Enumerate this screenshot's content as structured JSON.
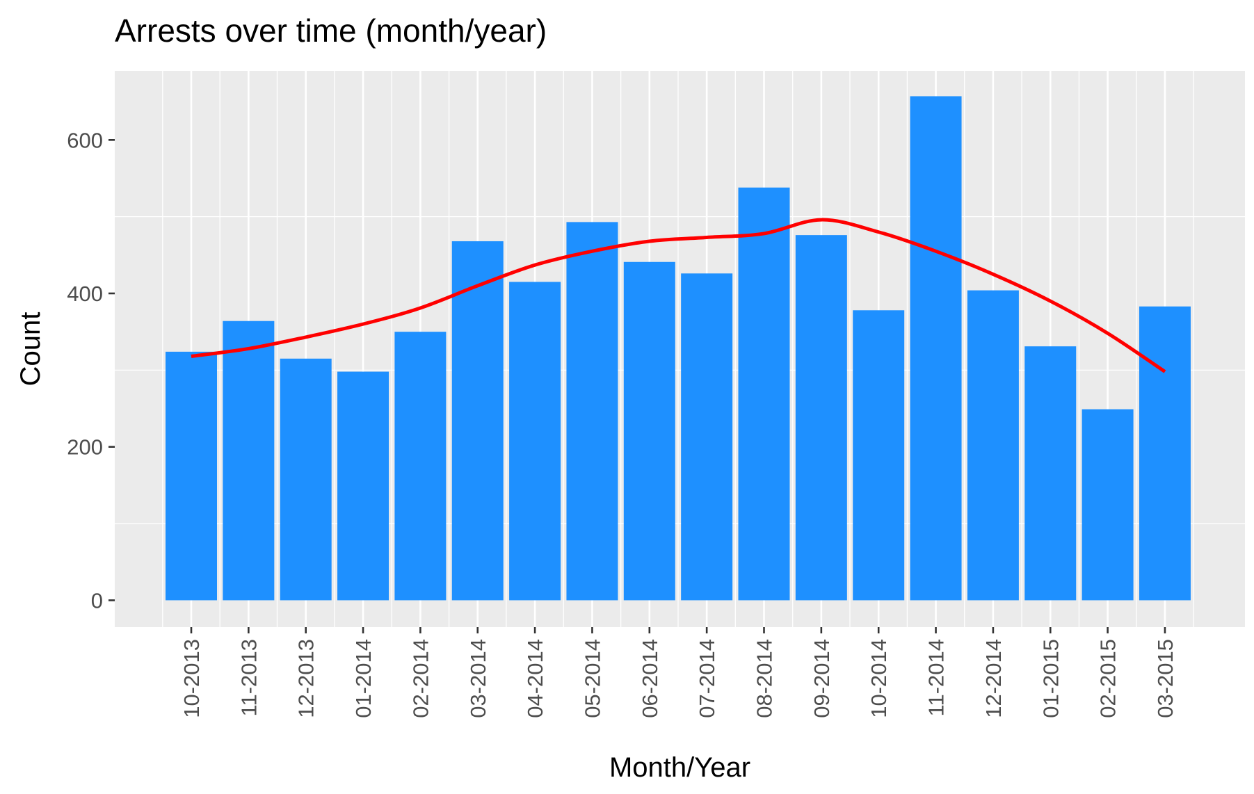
{
  "chart_data": {
    "type": "bar",
    "title": "Arrests over time (month/year)",
    "xlabel": "Month/Year",
    "ylabel": "Count",
    "categories": [
      "10-2013",
      "11-2013",
      "12-2013",
      "01-2014",
      "02-2014",
      "03-2014",
      "04-2014",
      "05-2014",
      "06-2014",
      "07-2014",
      "08-2014",
      "09-2014",
      "10-2014",
      "11-2014",
      "12-2014",
      "01-2015",
      "02-2015",
      "03-2015"
    ],
    "values": [
      324,
      364,
      315,
      298,
      350,
      468,
      415,
      493,
      441,
      426,
      538,
      476,
      378,
      657,
      404,
      331,
      249,
      383
    ],
    "series": [
      {
        "type": "bar",
        "values": [
          324,
          364,
          315,
          298,
          350,
          468,
          415,
          493,
          441,
          426,
          538,
          476,
          378,
          657,
          404,
          331,
          249,
          383
        ]
      },
      {
        "type": "line",
        "values": [
          318,
          328,
          343,
          360,
          381,
          410,
          437,
          455,
          468,
          473,
          478,
          496,
          480,
          455,
          425,
          390,
          348,
          298
        ]
      }
    ],
    "yticks": [
      0,
      200,
      400,
      600
    ],
    "ylim": [
      -35,
      690
    ],
    "grid": true,
    "legend": "none",
    "colors": {
      "bar": "#1e90ff",
      "trend": "#ff0000",
      "panel": "#ebebeb",
      "grid": "#ffffff"
    }
  }
}
